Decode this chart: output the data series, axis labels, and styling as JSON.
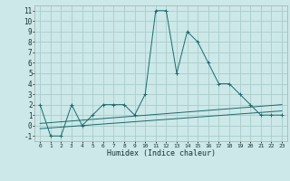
{
  "xlabel": "Humidex (Indice chaleur)",
  "background_color": "#cce8e8",
  "grid_color": "#aacccc",
  "line_color": "#1a6b6b",
  "xlim": [
    -0.5,
    23.5
  ],
  "ylim": [
    -1.5,
    11.5
  ],
  "xticks": [
    0,
    1,
    2,
    3,
    4,
    5,
    6,
    7,
    8,
    9,
    10,
    11,
    12,
    13,
    14,
    15,
    16,
    17,
    18,
    19,
    20,
    21,
    22,
    23
  ],
  "yticks": [
    -1,
    0,
    1,
    2,
    3,
    4,
    5,
    6,
    7,
    8,
    9,
    10,
    11
  ],
  "series1_x": [
    0,
    1,
    2,
    3,
    4,
    5,
    6,
    7,
    8,
    9,
    10,
    11,
    12,
    13,
    14,
    15,
    16,
    17,
    18,
    19,
    20,
    21,
    22,
    23
  ],
  "series1_y": [
    2,
    -1,
    -1,
    2,
    0,
    1,
    2,
    2,
    2,
    1,
    3,
    11,
    11,
    5,
    9,
    8,
    6,
    4,
    4,
    3,
    2,
    1,
    1,
    1
  ],
  "series2_x": [
    0,
    23
  ],
  "series2_y": [
    0.2,
    2.0
  ],
  "series3_x": [
    0,
    23
  ],
  "series3_y": [
    -0.3,
    1.4
  ]
}
